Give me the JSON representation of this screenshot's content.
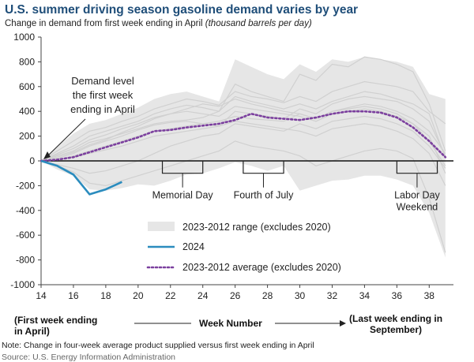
{
  "header": {
    "title": "U.S. summer driving season gasoline demand varies by year",
    "subtitle_main": "Change in demand from first week ending in April ",
    "subtitle_unit": "(thousand barrels per day)"
  },
  "bottom": {
    "left_label_line1": "(First week ending",
    "left_label_line2": "in April)",
    "center_label": "Week Number",
    "right_label_line1": "(Last week ending in",
    "right_label_line2": "September)"
  },
  "footer": {
    "note": "Note: Change in four-week average product supplied versus first week ending in April",
    "source": "Source: U.S. Energy Information Administration"
  },
  "chart_data": {
    "type": "line",
    "xlim": [
      14,
      39.5
    ],
    "ylim": [
      -1000,
      1000
    ],
    "x_ticks": [
      14,
      16,
      18,
      20,
      22,
      24,
      26,
      28,
      30,
      32,
      34,
      36,
      38
    ],
    "y_ticks": [
      -1000,
      -800,
      -600,
      -400,
      -200,
      0,
      200,
      400,
      600,
      800,
      1000
    ],
    "legend_position": "bottom-center",
    "colors": {
      "range": "#e6e6e6",
      "history": "#d0d0d0",
      "series_2024": "#2b8cbe",
      "average": "#7b3f9e",
      "axis": "#444444"
    },
    "range": {
      "name": "2023-2012 range (excludes 2020)",
      "x": [
        14,
        15,
        16,
        17,
        18,
        19,
        20,
        21,
        22,
        23,
        24,
        25,
        26,
        27,
        28,
        29,
        30,
        31,
        32,
        33,
        34,
        35,
        36,
        37,
        38,
        39
      ],
      "upper": [
        0,
        120,
        220,
        300,
        330,
        380,
        430,
        500,
        540,
        560,
        520,
        480,
        820,
        760,
        700,
        660,
        780,
        720,
        820,
        800,
        840,
        820,
        800,
        760,
        540,
        500
      ],
      "lower": [
        0,
        -70,
        -120,
        -230,
        -240,
        -220,
        -190,
        -200,
        -160,
        -110,
        -100,
        -60,
        -10,
        -40,
        -80,
        -40,
        -240,
        -200,
        -160,
        -150,
        -120,
        -120,
        -150,
        -200,
        -420,
        -780
      ]
    },
    "historical_lines": [
      [
        0,
        40,
        80,
        150,
        180,
        220,
        260,
        300,
        320,
        330,
        350,
        400,
        620,
        560,
        520,
        480,
        700,
        650,
        780,
        760,
        840,
        820,
        780,
        720,
        460,
        80
      ],
      [
        0,
        20,
        60,
        120,
        160,
        200,
        250,
        290,
        310,
        320,
        300,
        280,
        400,
        380,
        360,
        340,
        420,
        380,
        460,
        500,
        520,
        500,
        480,
        420,
        320,
        40
      ],
      [
        0,
        60,
        120,
        200,
        240,
        280,
        320,
        380,
        420,
        450,
        430,
        400,
        520,
        480,
        450,
        420,
        460,
        420,
        480,
        520,
        560,
        540,
        500,
        460,
        380,
        20
      ],
      [
        0,
        -30,
        -60,
        -100,
        -80,
        -40,
        0,
        60,
        120,
        160,
        200,
        220,
        300,
        280,
        260,
        240,
        300,
        260,
        320,
        340,
        360,
        340,
        300,
        240,
        120,
        -60
      ],
      [
        0,
        10,
        40,
        80,
        120,
        160,
        200,
        240,
        260,
        280,
        300,
        320,
        360,
        340,
        330,
        320,
        380,
        340,
        400,
        420,
        440,
        420,
        380,
        300,
        200,
        -100
      ],
      [
        0,
        -40,
        -90,
        -180,
        -200,
        -160,
        -120,
        -80,
        -40,
        0,
        40,
        80,
        160,
        120,
        100,
        80,
        40,
        -40,
        0,
        40,
        80,
        100,
        80,
        20,
        -300,
        -740
      ],
      [
        0,
        30,
        70,
        130,
        170,
        230,
        280,
        340,
        380,
        400,
        380,
        360,
        440,
        420,
        400,
        380,
        360,
        320,
        380,
        400,
        420,
        400,
        360,
        300,
        160,
        -40
      ],
      [
        0,
        50,
        100,
        170,
        210,
        260,
        300,
        350,
        380,
        420,
        460,
        440,
        500,
        460,
        430,
        400,
        380,
        340,
        400,
        430,
        460,
        440,
        400,
        340,
        240,
        60
      ],
      [
        0,
        15,
        30,
        60,
        90,
        120,
        160,
        200,
        220,
        240,
        260,
        280,
        320,
        300,
        280,
        260,
        240,
        200,
        260,
        280,
        300,
        280,
        240,
        180,
        60,
        -200
      ],
      [
        0,
        80,
        160,
        240,
        270,
        320,
        360,
        420,
        460,
        500,
        480,
        450,
        560,
        520,
        500,
        470,
        520,
        480,
        560,
        600,
        640,
        620,
        600,
        560,
        400,
        300
      ]
    ],
    "series_2024": {
      "name": "2024",
      "x": [
        14,
        15,
        16,
        17,
        18,
        19
      ],
      "values": [
        0,
        -40,
        -110,
        -270,
        -230,
        -170
      ]
    },
    "average": {
      "name": "2023-2012 average (excludes 2020)",
      "x": [
        14,
        15,
        16,
        17,
        18,
        19,
        20,
        21,
        22,
        23,
        24,
        25,
        26,
        27,
        28,
        29,
        30,
        31,
        32,
        33,
        34,
        35,
        36,
        37,
        38,
        39
      ],
      "values": [
        0,
        10,
        30,
        70,
        110,
        150,
        190,
        240,
        250,
        270,
        285,
        300,
        330,
        380,
        350,
        340,
        330,
        350,
        380,
        400,
        400,
        390,
        350,
        270,
        160,
        30
      ]
    },
    "annotations": [
      {
        "name": "demand-level-annotation",
        "lines": [
          "Demand level",
          "the first week",
          "ending in April"
        ],
        "target_x": 14,
        "target_y": 0
      },
      {
        "name": "memorial-day-annotation",
        "text": "Memorial Day",
        "bracket_x": [
          21.5,
          24
        ],
        "bracket_y": -100
      },
      {
        "name": "fourth-of-july-annotation",
        "text": "Fourth of July",
        "bracket_x": [
          26.5,
          29
        ],
        "bracket_y": -100
      },
      {
        "name": "labor-day-annotation",
        "lines": [
          "Labor Day",
          "Weekend"
        ],
        "bracket_x": [
          36,
          38.5
        ],
        "bracket_y": -100
      }
    ]
  }
}
